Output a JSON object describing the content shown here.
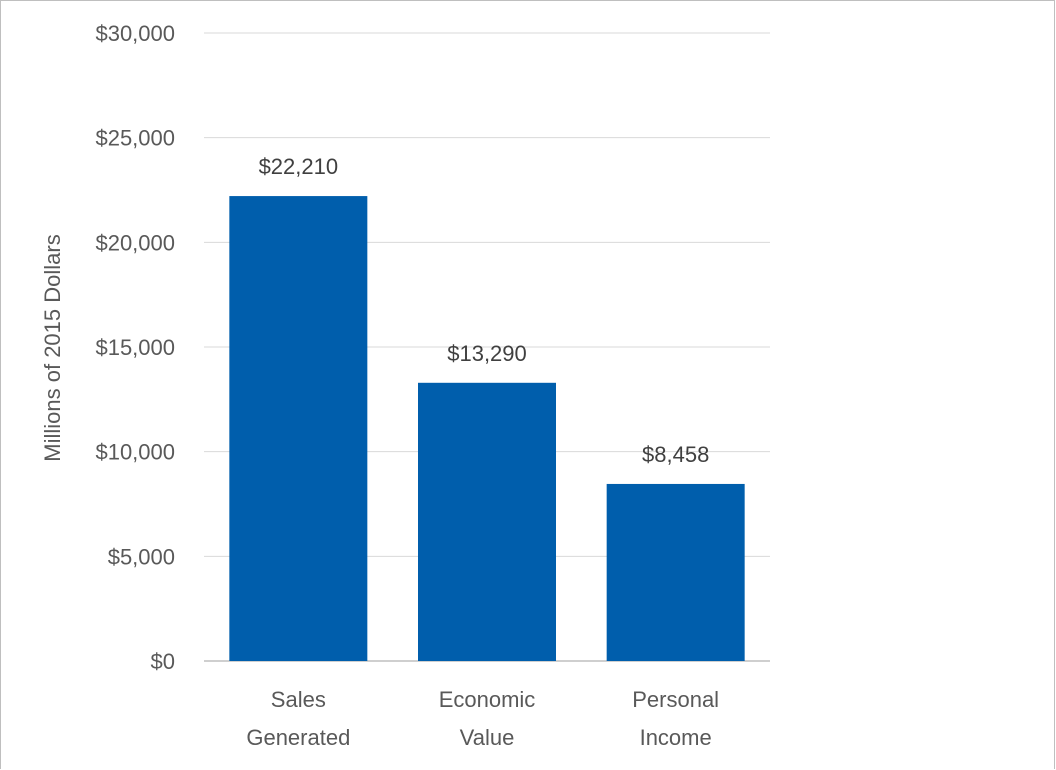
{
  "chart_data": {
    "type": "bar",
    "categories": [
      [
        "Sales",
        "Generated"
      ],
      [
        "Economic",
        "Value"
      ],
      [
        "Personal",
        "Income"
      ]
    ],
    "values": [
      22210,
      13290,
      8458
    ],
    "data_labels": [
      "$22,210",
      "$13,290",
      "$8,458"
    ],
    "ylabel": "Millions of 2015 Dollars",
    "ylim": [
      0,
      30000
    ],
    "yticks": [
      0,
      5000,
      10000,
      15000,
      20000,
      25000,
      30000
    ],
    "ytick_labels": [
      "$0",
      "$5,000",
      "$10,000",
      "$15,000",
      "$20,000",
      "$25,000",
      "$30,000"
    ],
    "grid": true,
    "colors": {
      "bar": "#005eac",
      "grid": "#d9d9d9",
      "axis": "#bfbfbf"
    }
  }
}
